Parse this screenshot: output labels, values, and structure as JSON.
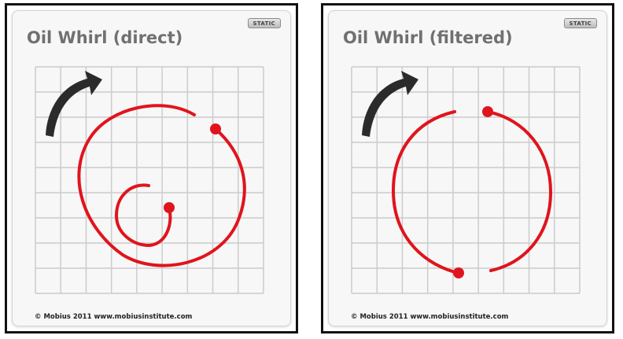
{
  "panels": [
    {
      "id": "direct",
      "title": "Oil Whirl (direct)",
      "badge": "STATIC",
      "copyright": "© Mobius 2011 www.mobiusinstitute.com",
      "trace_color": "#e0141c",
      "arrow_color": "#2b2b2b"
    },
    {
      "id": "filtered",
      "title": "Oil Whirl (filtered)",
      "badge": "STATIC",
      "copyright": "© Mobius 2011 www.mobiusinstitute.com",
      "trace_color": "#e0141c",
      "arrow_color": "#2b2b2b"
    }
  ],
  "grid_color": "#cccccc"
}
